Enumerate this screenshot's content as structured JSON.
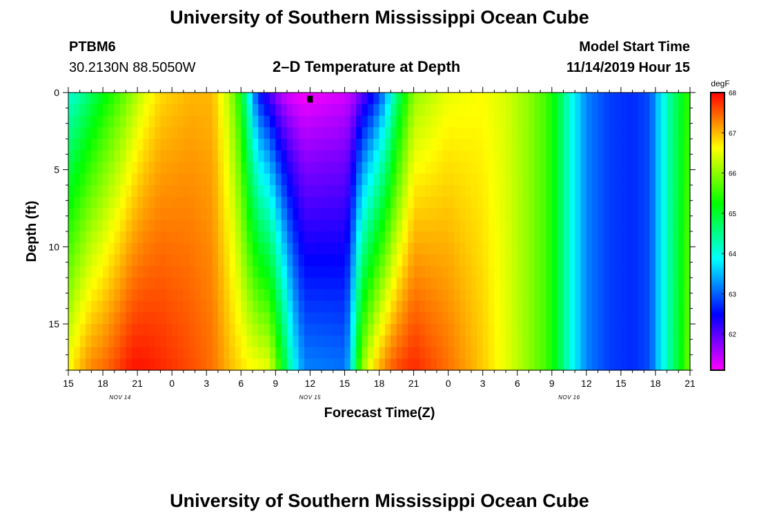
{
  "page": {
    "title": "University of Southern Mississippi Ocean Cube",
    "footer_title": "University of Southern Mississippi Ocean Cube",
    "station_id": "PTBM6",
    "station_coords": "30.2130N 88.5050W",
    "model_start_label": "Model Start Time",
    "model_start_value": "11/14/2019 Hour 15"
  },
  "chart_data": {
    "type": "heatmap",
    "title": "2–D Temperature at Depth",
    "xlabel": "Forecast Time(Z)",
    "ylabel": "Depth (ft)",
    "x_range_hours": [
      0,
      54
    ],
    "y_range": [
      0,
      18
    ],
    "y_reversed": true,
    "x_ticks": [
      {
        "h": 0,
        "label": "15"
      },
      {
        "h": 3,
        "label": "18"
      },
      {
        "h": 6,
        "label": "21"
      },
      {
        "h": 9,
        "label": "0"
      },
      {
        "h": 12,
        "label": "3"
      },
      {
        "h": 15,
        "label": "6"
      },
      {
        "h": 18,
        "label": "9"
      },
      {
        "h": 21,
        "label": "12"
      },
      {
        "h": 24,
        "label": "15"
      },
      {
        "h": 27,
        "label": "18"
      },
      {
        "h": 30,
        "label": "21"
      },
      {
        "h": 33,
        "label": "0"
      },
      {
        "h": 36,
        "label": "3"
      },
      {
        "h": 39,
        "label": "6"
      },
      {
        "h": 42,
        "label": "9"
      },
      {
        "h": 45,
        "label": "12"
      },
      {
        "h": 48,
        "label": "15"
      },
      {
        "h": 51,
        "label": "18"
      },
      {
        "h": 54,
        "label": "21"
      }
    ],
    "date_labels": [
      {
        "h": 4.5,
        "label": "NOV 14"
      },
      {
        "h": 21,
        "label": "NOV 15"
      },
      {
        "h": 43.5,
        "label": "NOV 16"
      }
    ],
    "y_ticks": [
      0,
      5,
      10,
      15
    ],
    "colorbar": {
      "unit": "degF",
      "min": 61.1,
      "max": 68,
      "ticks": [
        62,
        63,
        64,
        65,
        66,
        67,
        68
      ]
    },
    "marker": {
      "h": 21,
      "depth": 0.2
    },
    "temperature_profile": [
      {
        "h": 0.0,
        "top": 64.0,
        "bottom": 66.6
      },
      {
        "h": 1.0,
        "top": 64.3,
        "bottom": 67.0
      },
      {
        "h": 2.0,
        "top": 64.7,
        "bottom": 67.3
      },
      {
        "h": 3.0,
        "top": 65.1,
        "bottom": 67.4
      },
      {
        "h": 4.5,
        "top": 65.6,
        "bottom": 67.7
      },
      {
        "h": 5.5,
        "top": 66.0,
        "bottom": 67.9
      },
      {
        "h": 6.5,
        "top": 66.4,
        "bottom": 67.9
      },
      {
        "h": 8.0,
        "top": 66.8,
        "bottom": 67.8
      },
      {
        "h": 10.5,
        "top": 67.0,
        "bottom": 67.6
      },
      {
        "h": 12.5,
        "top": 67.0,
        "bottom": 67.4
      },
      {
        "h": 14.0,
        "top": 66.2,
        "bottom": 67.0
      },
      {
        "h": 15.0,
        "top": 65.2,
        "bottom": 66.8
      },
      {
        "h": 15.5,
        "top": 64.2,
        "bottom": 66.7
      },
      {
        "h": 16.5,
        "top": 62.6,
        "bottom": 66.6
      },
      {
        "h": 17.5,
        "top": 62.0,
        "bottom": 66.5
      },
      {
        "h": 18.5,
        "top": 61.4,
        "bottom": 65.3
      },
      {
        "h": 19.5,
        "top": 61.2,
        "bottom": 64.0
      },
      {
        "h": 20.5,
        "top": 61.1,
        "bottom": 63.2
      },
      {
        "h": 24.0,
        "top": 61.3,
        "bottom": 63.1
      },
      {
        "h": 24.5,
        "top": 61.4,
        "bottom": 63.6
      },
      {
        "h": 25.0,
        "top": 61.6,
        "bottom": 65.0
      },
      {
        "h": 25.5,
        "top": 61.9,
        "bottom": 66.0
      },
      {
        "h": 26.5,
        "top": 62.4,
        "bottom": 66.8
      },
      {
        "h": 27.5,
        "top": 63.2,
        "bottom": 67.3
      },
      {
        "h": 28.5,
        "top": 64.5,
        "bottom": 67.6
      },
      {
        "h": 30.0,
        "top": 66.0,
        "bottom": 67.8
      },
      {
        "h": 33.0,
        "top": 66.5,
        "bottom": 67.4
      },
      {
        "h": 36.0,
        "top": 66.6,
        "bottom": 66.9
      },
      {
        "h": 38.0,
        "top": 66.4,
        "bottom": 66.5
      },
      {
        "h": 40.0,
        "top": 66.0,
        "bottom": 66.0
      },
      {
        "h": 41.5,
        "top": 65.6,
        "bottom": 65.6
      },
      {
        "h": 42.5,
        "top": 65.0,
        "bottom": 65.0
      },
      {
        "h": 43.5,
        "top": 64.1,
        "bottom": 64.1
      },
      {
        "h": 45.0,
        "top": 63.2,
        "bottom": 63.2
      },
      {
        "h": 47.0,
        "top": 62.8,
        "bottom": 62.8
      },
      {
        "h": 49.0,
        "top": 62.7,
        "bottom": 62.7
      },
      {
        "h": 50.5,
        "top": 62.9,
        "bottom": 62.9
      },
      {
        "h": 51.5,
        "top": 63.8,
        "bottom": 63.8
      },
      {
        "h": 52.5,
        "top": 64.6,
        "bottom": 64.6
      },
      {
        "h": 53.5,
        "top": 65.2,
        "bottom": 65.4
      },
      {
        "h": 54.0,
        "top": 65.6,
        "bottom": 66.0
      }
    ]
  }
}
